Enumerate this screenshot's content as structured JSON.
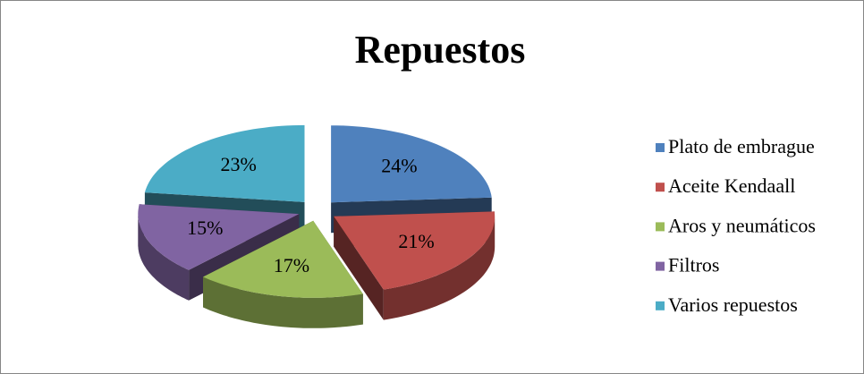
{
  "chart_data": {
    "type": "pie",
    "title": "Repuestos",
    "categories": [
      "Plato de embrague",
      "Aceite Kendaall",
      "Aros y neumáticos",
      "Filtros",
      "Varios repuestos"
    ],
    "values": [
      24,
      21,
      17,
      15,
      23
    ],
    "value_labels": [
      "24%",
      "21%",
      "17%",
      "15%",
      "23%"
    ],
    "colors": [
      "#4f81bd",
      "#c0504d",
      "#9bbb59",
      "#8064a2",
      "#4bacc6"
    ],
    "legend": "right"
  }
}
